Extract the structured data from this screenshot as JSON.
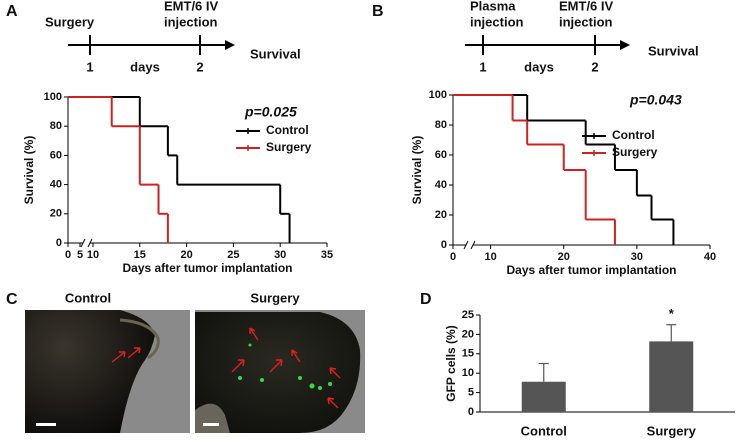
{
  "chart_data": [
    {
      "type": "survival",
      "panel_label": "A",
      "timeline": {
        "start_label": [
          "Surgery"
        ],
        "end_label": [
          "EMT/6 IV",
          "injection"
        ],
        "ticks": [
          "1",
          "2"
        ],
        "unit": "days",
        "outcome": "Survival"
      },
      "annotation": "p=0.025",
      "x_label": "Days after tumor implantation",
      "y_label": "Survival (%)",
      "xlim": [
        0,
        35
      ],
      "axis_break": [
        5,
        10
      ],
      "xticks": [
        0,
        5,
        10,
        15,
        20,
        25,
        30,
        35
      ],
      "ylim": [
        0,
        100
      ],
      "yticks": [
        0,
        20,
        40,
        60,
        80,
        100
      ],
      "series": [
        {
          "name": "Control",
          "color": "#000000",
          "x": [
            0,
            15,
            18,
            19,
            30,
            31
          ],
          "values": [
            100,
            80,
            60,
            40,
            20,
            0
          ]
        },
        {
          "name": "Surgery",
          "color": "#cc2222",
          "x": [
            0,
            12,
            15,
            17,
            18
          ],
          "values": [
            100,
            80,
            40,
            20,
            0
          ]
        }
      ]
    },
    {
      "type": "survival",
      "panel_label": "B",
      "timeline": {
        "start_label": [
          "Plasma",
          "injection"
        ],
        "end_label": [
          "EMT/6 IV",
          "injection"
        ],
        "ticks": [
          "1",
          "2"
        ],
        "unit": "days",
        "outcome": "Survival"
      },
      "annotation": "p=0.043",
      "x_label": "Days after tumor implantation",
      "y_label": "Survival (%)",
      "xlim": [
        0,
        40
      ],
      "axis_break": [
        2,
        8
      ],
      "xticks": [
        0,
        10,
        20,
        30,
        40
      ],
      "ylim": [
        0,
        100
      ],
      "yticks": [
        0,
        20,
        40,
        60,
        80,
        100
      ],
      "series": [
        {
          "name": "Control",
          "color": "#000000",
          "x": [
            0,
            15,
            23,
            27,
            30,
            32,
            35
          ],
          "values": [
            100,
            83,
            67,
            50,
            33,
            17,
            0
          ]
        },
        {
          "name": "Surgery",
          "color": "#cc2222",
          "x": [
            0,
            13,
            15,
            20,
            23,
            27
          ],
          "values": [
            100,
            83,
            67,
            50,
            17,
            0
          ]
        }
      ]
    },
    {
      "type": "bar",
      "panel_label": "D",
      "y_label": "GFP cells (%)",
      "categories": [
        "Control",
        "Surgery"
      ],
      "values": [
        7.8,
        18.2
      ],
      "errors": [
        4.7,
        4.3
      ],
      "color": "#555555",
      "annotations": [
        null,
        "*"
      ],
      "ylim": [
        0,
        25
      ],
      "yticks": [
        0,
        5,
        10,
        15,
        20,
        25
      ]
    }
  ],
  "panel_c": {
    "panel_label": "C",
    "images": [
      {
        "label": "Control"
      },
      {
        "label": "Surgery"
      }
    ]
  }
}
